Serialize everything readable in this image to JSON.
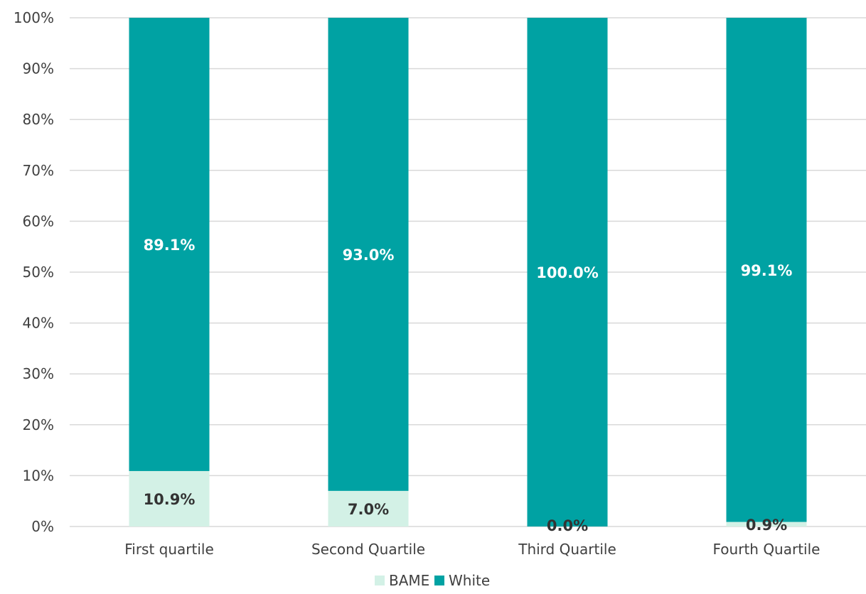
{
  "chart_data": {
    "type": "bar",
    "stacked": true,
    "categories": [
      "First quartile",
      "Second Quartile",
      "Third Quartile",
      "Fourth Quartile"
    ],
    "series": [
      {
        "name": "BAME",
        "color": "#d3f1e6",
        "label_color": "#333333",
        "values": [
          10.9,
          7.0,
          0.0,
          0.9
        ],
        "labels": [
          "10.9%",
          "7.0%",
          "0.0%",
          "0.9%"
        ]
      },
      {
        "name": "White",
        "color": "#00a2a3",
        "label_color": "#ffffff",
        "values": [
          89.1,
          93.0,
          100.0,
          99.1
        ],
        "labels": [
          "89.1%",
          "93.0%",
          "100.0%",
          "99.1%"
        ]
      }
    ],
    "ylim": [
      0,
      100
    ],
    "yticks": [
      0,
      10,
      20,
      30,
      40,
      50,
      60,
      70,
      80,
      90,
      100
    ],
    "ytick_labels": [
      "0%",
      "10%",
      "20%",
      "30%",
      "40%",
      "50%",
      "60%",
      "70%",
      "80%",
      "90%",
      "100%"
    ],
    "grid": true,
    "gridline_color": "#d9d9d9",
    "legend_position": "bottom"
  }
}
